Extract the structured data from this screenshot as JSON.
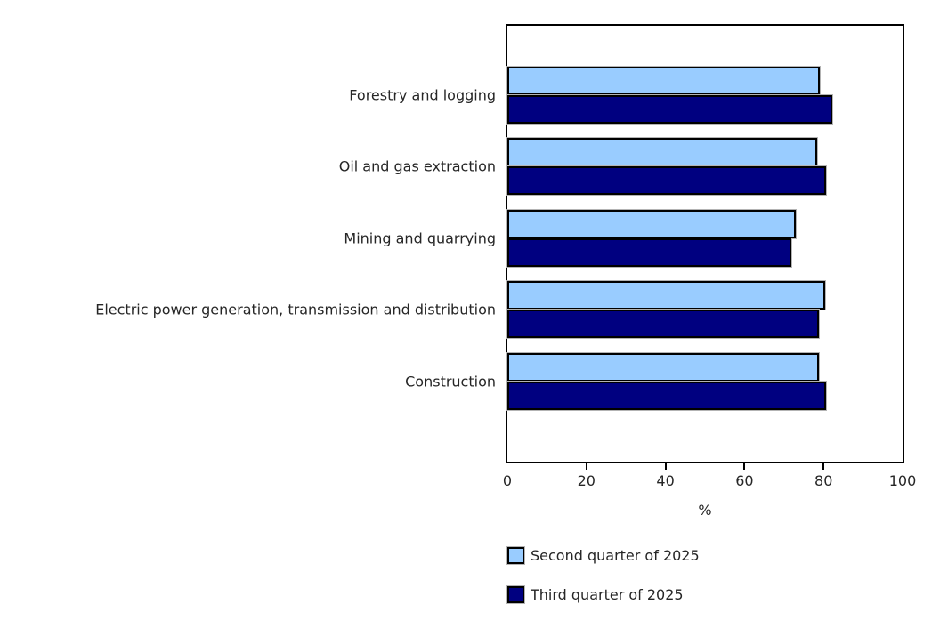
{
  "chart_data": {
    "type": "bar",
    "orientation": "horizontal",
    "categories": [
      "Forestry and logging",
      "Oil and gas extraction",
      "Mining and quarrying",
      "Electric power generation, transmission and distribution",
      "Construction"
    ],
    "series": [
      {
        "name": "Second quarter of 2025",
        "color": "#99CCFF",
        "values": [
          79.0,
          78.4,
          72.9,
          80.4,
          78.9
        ]
      },
      {
        "name": "Third quarter of 2025",
        "color": "#000080",
        "values": [
          82.1,
          80.6,
          71.8,
          78.9,
          80.6
        ]
      }
    ],
    "xlabel": "%",
    "xlim": [
      0,
      100
    ],
    "xticks": [
      0,
      20,
      40,
      60,
      80,
      100
    ],
    "grid": false,
    "legend_position": "bottom-left",
    "axis_color": "#000000",
    "bar_border_color": "#000000",
    "bar_shadow_color": "#b3b3b3",
    "text_color": "#262626",
    "plot_background": "#ffffff"
  }
}
